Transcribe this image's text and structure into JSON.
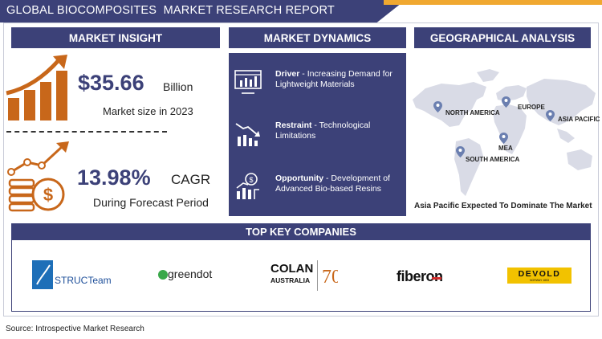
{
  "header": {
    "title": "GLOBAL BIOCOMPOSITES  MARKET RESEARCH REPORT"
  },
  "sections": {
    "insight": "MARKET INSIGHT",
    "dynamics": "MARKET DYNAMICS",
    "geo": "GEOGRAPHICAL ANALYSIS",
    "companies": "TOP KEY COMPANIES"
  },
  "insight": {
    "market_value": "$35.66",
    "market_unit": "Billion",
    "market_caption": "Market size in 2023",
    "cagr_value": "13.98%",
    "cagr_unit": "CAGR",
    "cagr_caption": "During Forecast Period"
  },
  "dynamics": {
    "driver_label": "Driver",
    "driver_text": " - Increasing Demand for Lightweight Materials",
    "restraint_label": "Restraint",
    "restraint_text": " - Technological Limitations",
    "opportunity_label": "Opportunity",
    "opportunity_text": " - Development of Advanced Bio-based Resins"
  },
  "geo": {
    "regions": {
      "north_america": "NORTH AMERICA",
      "europe": "EUROPE",
      "asia_pacific": "ASIA PACIFIC",
      "mea": "MEA",
      "south_america": "SOUTH AMERICA"
    },
    "caption": "Asia Pacific Expected To Dominate The Market"
  },
  "companies": {
    "structeam": "STRUCTeam",
    "greendot": "greendot",
    "colan_top": "COLAN",
    "colan_bottom": "AUSTRALIA",
    "fiberon": "fiberon",
    "devold": "DEVOLD",
    "devold_sub": "NORWAY 1853"
  },
  "footer": {
    "source": "Source: Introspective Market Research"
  },
  "colors": {
    "navy": "#3c4178",
    "orange": "#f0a830",
    "icon_orange": "#c8671a"
  }
}
